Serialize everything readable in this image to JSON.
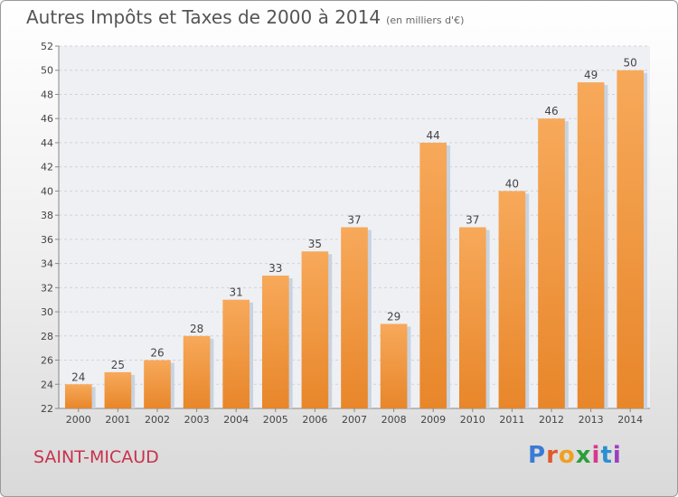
{
  "chart_data": {
    "type": "bar",
    "title": "Autres Impôts et Taxes de 2000 à 2014",
    "subtitle": "(en milliers d'€)",
    "categories": [
      "2000",
      "2001",
      "2002",
      "2003",
      "2004",
      "2005",
      "2006",
      "2007",
      "2008",
      "2009",
      "2010",
      "2011",
      "2012",
      "2013",
      "2014"
    ],
    "values": [
      24,
      25,
      26,
      28,
      31,
      33,
      35,
      37,
      29,
      44,
      37,
      40,
      46,
      49,
      50
    ],
    "ylim": [
      22,
      52
    ],
    "yticks": [
      22,
      24,
      26,
      28,
      30,
      32,
      34,
      36,
      38,
      40,
      42,
      44,
      46,
      48,
      50,
      52
    ],
    "grid": true,
    "colors": {
      "bar_top": "#f7a95a",
      "bar_bottom": "#e8862a",
      "bar_shadow": "#c9d3e0"
    }
  },
  "footer": {
    "place": "SAINT-MICAUD",
    "logo": [
      "P",
      "r",
      "o",
      "x",
      "i",
      "t",
      "i"
    ]
  }
}
